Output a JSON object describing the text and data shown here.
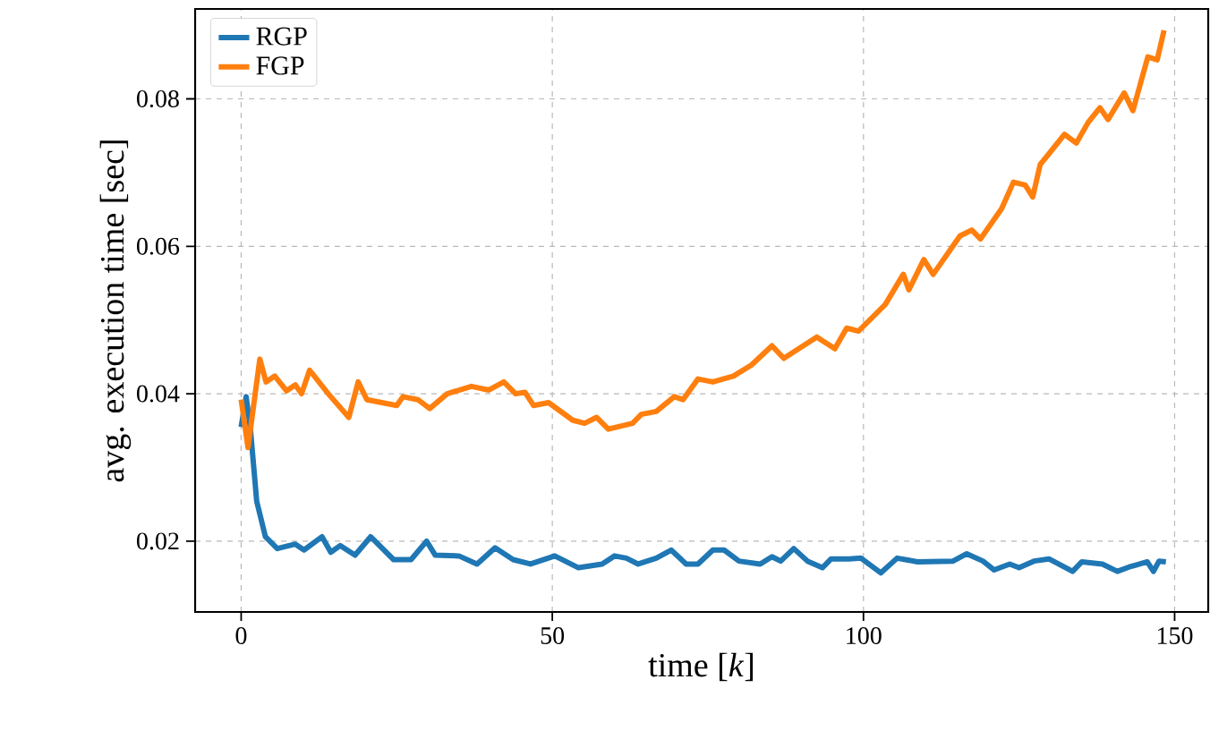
{
  "chart_data": {
    "type": "line",
    "xlabel": "time [*k*]",
    "ylabel": "avg. execution time [sec]",
    "xlim": [
      -7.4,
      155.4
    ],
    "ylim": [
      0.0104,
      0.0922
    ],
    "xticks": [
      0,
      50,
      100,
      150
    ],
    "yticks": [
      0.02,
      0.04,
      0.06,
      0.08
    ],
    "grid": true,
    "legend": "top left",
    "line_style": "solid",
    "marker": "none",
    "series": [
      {
        "name": "RGP",
        "color": "#1f77b4",
        "x": [
          0,
          0.8,
          1.5,
          2.5,
          3.9,
          5.8,
          8.7,
          10.1,
          13,
          14.4,
          15.9,
          18.3,
          20.8,
          24.5,
          27.3,
          29.8,
          31.2,
          35,
          37.9,
          40.8,
          43.7,
          46.5,
          50.4,
          54.2,
          58,
          60,
          61.9,
          63.8,
          66.7,
          69.1,
          71.5,
          73.4,
          75.8,
          77.6,
          80,
          83.4,
          85.3,
          86.7,
          88.8,
          91,
          93.4,
          94.8,
          97.7,
          99.6,
          102.8,
          105.4,
          108.7,
          114.4,
          116.6,
          119.2,
          121,
          123.5,
          125,
          127.4,
          129.8,
          133.6,
          135.1,
          138.4,
          140.8,
          142.7,
          145.6,
          146.6,
          147.5,
          148.6
        ],
        "values": [
          0.0355,
          0.0396,
          0.0351,
          0.0254,
          0.0206,
          0.019,
          0.0196,
          0.0188,
          0.0206,
          0.0185,
          0.0194,
          0.0181,
          0.0206,
          0.0175,
          0.0175,
          0.02,
          0.0181,
          0.018,
          0.0169,
          0.0191,
          0.0175,
          0.0169,
          0.018,
          0.0164,
          0.0169,
          0.018,
          0.0177,
          0.0169,
          0.0177,
          0.0188,
          0.0169,
          0.0169,
          0.0188,
          0.0188,
          0.0173,
          0.0169,
          0.0179,
          0.0173,
          0.019,
          0.0173,
          0.0164,
          0.0176,
          0.0176,
          0.0177,
          0.0157,
          0.0177,
          0.0172,
          0.0173,
          0.0183,
          0.0173,
          0.0161,
          0.0169,
          0.0164,
          0.0173,
          0.0176,
          0.0159,
          0.0172,
          0.0169,
          0.0159,
          0.0165,
          0.0172,
          0.0159,
          0.0173,
          0.0172
        ]
      },
      {
        "name": "FGP",
        "color": "#ff7f0e",
        "x": [
          0,
          1.1,
          3,
          4,
          5.4,
          7.3,
          8.7,
          9.7,
          11,
          14,
          17.3,
          18.8,
          20.2,
          22.6,
          25,
          26,
          28.4,
          30.3,
          33.1,
          37,
          39.8,
          42.2,
          44.1,
          45.6,
          47,
          49.4,
          53.3,
          55.2,
          57.1,
          59,
          62.9,
          64.3,
          66.7,
          69.6,
          71,
          73.4,
          75.8,
          79.1,
          82,
          85.3,
          87.2,
          92.5,
          95.4,
          97.3,
          99.2,
          103.5,
          106.4,
          107.3,
          109.7,
          111.2,
          115.5,
          117.4,
          118.8,
          122.2,
          124.1,
          126,
          127.2,
          128.4,
          130.8,
          132.3,
          134.2,
          136.1,
          138,
          139.3,
          141.9,
          143.3,
          145.7,
          147.2,
          148.3
        ],
        "values": [
          0.0392,
          0.0327,
          0.0447,
          0.0416,
          0.0424,
          0.0404,
          0.0412,
          0.04,
          0.0432,
          0.04,
          0.0368,
          0.0416,
          0.0392,
          0.0388,
          0.0384,
          0.0396,
          0.0392,
          0.038,
          0.04,
          0.041,
          0.0405,
          0.0416,
          0.04,
          0.0402,
          0.0384,
          0.0388,
          0.0364,
          0.036,
          0.0368,
          0.0352,
          0.036,
          0.0372,
          0.0376,
          0.0396,
          0.0392,
          0.042,
          0.0416,
          0.0424,
          0.0439,
          0.0465,
          0.0448,
          0.0477,
          0.0461,
          0.0489,
          0.0485,
          0.0521,
          0.0562,
          0.0541,
          0.0582,
          0.0562,
          0.0614,
          0.0622,
          0.061,
          0.0651,
          0.0687,
          0.0683,
          0.0667,
          0.0711,
          0.0736,
          0.0752,
          0.074,
          0.0768,
          0.0788,
          0.0772,
          0.0808,
          0.0784,
          0.0857,
          0.0853,
          0.0893
        ]
      }
    ]
  }
}
